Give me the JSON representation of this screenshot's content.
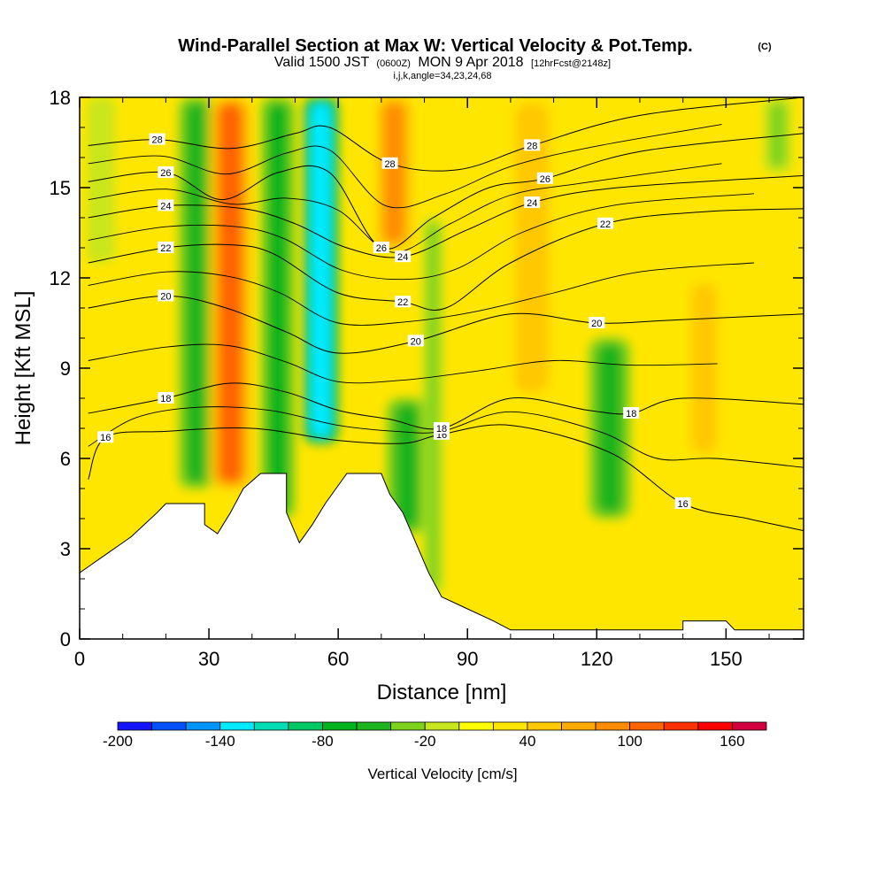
{
  "title": {
    "main": "Wind-Parallel Section at Max W: Vertical Velocity & Pot.Temp.",
    "copyright": "(C)",
    "valid_prefix": "Valid 1500 JST",
    "valid_utc": "(0600Z)",
    "valid_date": "MON 9 Apr 2018",
    "forecast": "[12hrFcst@2148z]",
    "params": "i,j,k,angle=34,23,24,68"
  },
  "chart_data": {
    "type": "heatmap",
    "xlabel": "Distance [nm]",
    "ylabel": "Height [Kft MSL]",
    "xlim": [
      0,
      168
    ],
    "ylim": [
      0,
      18
    ],
    "x_ticks": [
      0,
      30,
      60,
      90,
      120,
      150
    ],
    "y_ticks": [
      0,
      3,
      6,
      9,
      12,
      15,
      18
    ],
    "grid": false,
    "colorbar": {
      "title": "Vertical Velocity [cm/s]",
      "placement": "bottom",
      "min": -200,
      "max": 180,
      "step": 20,
      "tick_values": [
        -200,
        -140,
        -80,
        -20,
        40,
        100,
        160
      ],
      "colors": [
        "#1414ff",
        "#0050ff",
        "#0096ff",
        "#00ebff",
        "#00dcb4",
        "#00c864",
        "#00b41e",
        "#1eb41e",
        "#7dd21e",
        "#c8e61e",
        "#ffff00",
        "#ffe600",
        "#ffc800",
        "#ffaa00",
        "#ff8c00",
        "#ff6400",
        "#ff3200",
        "#ff0000",
        "#d2003c",
        "#b40064",
        "#96007d",
        "#64008c"
      ]
    },
    "vertical_velocity_features": [
      {
        "x": 5,
        "z_from": 12.5,
        "z_to": 18,
        "value": -10,
        "width": 4
      },
      {
        "x": 27,
        "z_from": 5,
        "z_to": 18,
        "value": -60,
        "width": 5
      },
      {
        "x": 35,
        "z_from": 5,
        "z_to": 18,
        "value": 100,
        "width": 6
      },
      {
        "x": 46,
        "z_from": 4,
        "z_to": 18,
        "value": -80,
        "width": 5
      },
      {
        "x": 56,
        "z_from": 6.5,
        "z_to": 18,
        "value": -140,
        "width": 5
      },
      {
        "x": 73,
        "z_from": 13,
        "z_to": 18,
        "value": 80,
        "width": 5
      },
      {
        "x": 76,
        "z_from": 3.5,
        "z_to": 8,
        "value": -60,
        "width": 6
      },
      {
        "x": 82,
        "z_from": 1.5,
        "z_to": 14,
        "value": -40,
        "width": 3
      },
      {
        "x": 105,
        "z_from": 8,
        "z_to": 18,
        "value": 50,
        "width": 8
      },
      {
        "x": 123,
        "z_from": 4,
        "z_to": 10,
        "value": -60,
        "width": 6
      },
      {
        "x": 145,
        "z_from": 6,
        "z_to": 12,
        "value": 40,
        "width": 6
      },
      {
        "x": 162,
        "z_from": 15.5,
        "z_to": 18,
        "value": -30,
        "width": 4
      }
    ],
    "potential_temperature_contours": [
      {
        "level": 16,
        "points": [
          [
            2,
            5.3
          ],
          [
            6,
            6.7
          ],
          [
            20,
            6.9
          ],
          [
            40,
            7.0
          ],
          [
            60,
            6.6
          ],
          [
            75,
            6.5
          ],
          [
            84,
            6.8
          ],
          [
            100,
            7.1
          ],
          [
            123,
            6.2
          ],
          [
            140,
            4.5
          ],
          [
            155,
            4.0
          ],
          [
            168,
            3.6
          ]
        ]
      },
      {
        "level": 18,
        "points": [
          [
            2,
            7.5
          ],
          [
            20,
            8.0
          ],
          [
            35,
            8.5
          ],
          [
            48,
            8.2
          ],
          [
            60,
            7.6
          ],
          [
            72,
            7.3
          ],
          [
            84,
            7.0
          ],
          [
            100,
            8.0
          ],
          [
            118,
            7.6
          ],
          [
            128,
            7.5
          ],
          [
            140,
            8.0
          ],
          [
            168,
            7.8
          ]
        ]
      },
      {
        "level": 20,
        "points": [
          [
            2,
            11.0
          ],
          [
            20,
            11.4
          ],
          [
            34,
            11.0
          ],
          [
            48,
            10.2
          ],
          [
            60,
            9.5
          ],
          [
            78,
            9.9
          ],
          [
            100,
            10.8
          ],
          [
            120,
            10.5
          ],
          [
            138,
            10.6
          ],
          [
            168,
            10.8
          ]
        ]
      },
      {
        "level": 22,
        "points": [
          [
            2,
            12.5
          ],
          [
            20,
            13.0
          ],
          [
            35,
            13.1
          ],
          [
            45,
            12.8
          ],
          [
            60,
            11.5
          ],
          [
            75,
            11.2
          ],
          [
            85,
            11.0
          ],
          [
            100,
            12.5
          ],
          [
            122,
            13.8
          ],
          [
            145,
            14.2
          ],
          [
            168,
            14.3
          ]
        ]
      },
      {
        "level": 24,
        "points": [
          [
            2,
            14.0
          ],
          [
            20,
            14.4
          ],
          [
            38,
            14.3
          ],
          [
            50,
            13.8
          ],
          [
            62,
            13.0
          ],
          [
            75,
            12.7
          ],
          [
            90,
            13.6
          ],
          [
            105,
            14.5
          ],
          [
            125,
            15.0
          ],
          [
            168,
            15.4
          ]
        ]
      },
      {
        "level": 26,
        "points": [
          [
            2,
            15.2
          ],
          [
            20,
            15.5
          ],
          [
            33,
            14.6
          ],
          [
            46,
            15.5
          ],
          [
            58,
            15.5
          ],
          [
            70,
            13.0
          ],
          [
            82,
            14.0
          ],
          [
            95,
            15.0
          ],
          [
            108,
            15.3
          ],
          [
            130,
            16.2
          ],
          [
            168,
            16.8
          ]
        ]
      },
      {
        "level": 28,
        "points": [
          [
            2,
            16.4
          ],
          [
            18,
            16.6
          ],
          [
            35,
            16.3
          ],
          [
            50,
            16.8
          ],
          [
            58,
            17.0
          ],
          [
            72,
            15.8
          ],
          [
            88,
            15.6
          ],
          [
            105,
            16.4
          ],
          [
            130,
            17.4
          ],
          [
            168,
            18.0
          ]
        ]
      }
    ],
    "terrain": [
      [
        0,
        2.2
      ],
      [
        3,
        2.5
      ],
      [
        6,
        2.8
      ],
      [
        9,
        3.1
      ],
      [
        12,
        3.4
      ],
      [
        15,
        3.8
      ],
      [
        18,
        4.2
      ],
      [
        20,
        4.5
      ],
      [
        29,
        4.5
      ],
      [
        29,
        3.8
      ],
      [
        32,
        3.5
      ],
      [
        35,
        4.2
      ],
      [
        38,
        5.0
      ],
      [
        42,
        5.5
      ],
      [
        48,
        5.5
      ],
      [
        48,
        4.2
      ],
      [
        51,
        3.2
      ],
      [
        54,
        3.8
      ],
      [
        57,
        4.5
      ],
      [
        62,
        5.5
      ],
      [
        70,
        5.5
      ],
      [
        72,
        4.8
      ],
      [
        75,
        4.2
      ],
      [
        78,
        3.2
      ],
      [
        81,
        2.2
      ],
      [
        84,
        1.4
      ],
      [
        90,
        1.0
      ],
      [
        96,
        0.6
      ],
      [
        100,
        0.3
      ],
      [
        140,
        0.3
      ],
      [
        140,
        0.6
      ],
      [
        150,
        0.6
      ],
      [
        152,
        0.3
      ],
      [
        168,
        0.3
      ]
    ]
  }
}
